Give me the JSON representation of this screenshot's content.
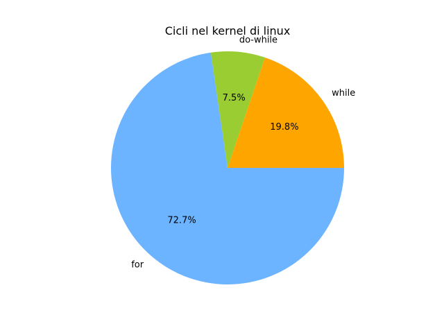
{
  "chart_data": {
    "type": "pie",
    "title": "Cicli nel kernel di linux",
    "slices": [
      {
        "label": "while",
        "value": 19.8,
        "pct_text": "19.8%",
        "color": "#ffa500"
      },
      {
        "label": "do-while",
        "value": 7.5,
        "pct_text": "7.5%",
        "color": "#9acd32"
      },
      {
        "label": "for",
        "value": 72.7,
        "pct_text": "72.7%",
        "color": "#6cb4ff"
      }
    ],
    "start_angle_deg": 0,
    "direction": "counterclockwise"
  }
}
